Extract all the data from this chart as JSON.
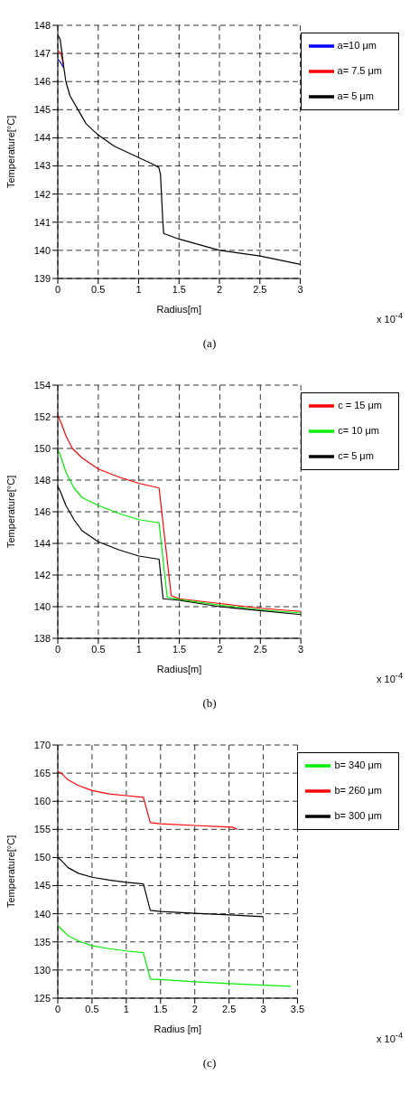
{
  "chart_data": [
    {
      "type": "line",
      "ylabel": "Temperature[°C]",
      "xlabel": "Radius[m]",
      "xlim": [
        0,
        3
      ],
      "xticks": [
        0,
        0.5,
        1,
        1.5,
        2,
        2.5,
        3
      ],
      "ylim": [
        139,
        148
      ],
      "yticks": [
        139,
        140,
        141,
        142,
        143,
        144,
        145,
        146,
        147,
        148
      ],
      "grid": true,
      "legend": "top right",
      "annotations": [
        "x 10$^{-4}$",
        "(a)"
      ],
      "series": [
        {
          "name": "a=10 μm",
          "color": "#0000ff",
          "x": [
            0,
            0.03,
            0.07
          ],
          "values": [
            146.8,
            146.7,
            146.5
          ]
        },
        {
          "name": "a= 7.5 μm",
          "color": "#ff0000",
          "x": [
            0,
            0.04,
            0.07
          ],
          "values": [
            147.1,
            147.0,
            146.6
          ]
        },
        {
          "name": "a= 5 μm",
          "color": "#000000",
          "x": [
            0,
            0.03,
            0.07,
            0.1,
            0.15,
            0.25,
            0.35,
            0.5,
            0.7,
            1.0,
            1.15,
            1.25,
            1.27,
            1.3,
            1.31,
            1.5,
            1.75,
            2.0,
            2.5,
            3.0
          ],
          "values": [
            147.65,
            147.5,
            146.6,
            146.0,
            145.5,
            145.0,
            144.5,
            144.1,
            143.7,
            143.3,
            143.1,
            142.95,
            142.7,
            141.0,
            140.6,
            140.4,
            140.2,
            140.0,
            139.8,
            139.5
          ]
        }
      ]
    },
    {
      "type": "line",
      "ylabel": "Temperature[°C]",
      "xlabel": "Radius[m]",
      "xlim": [
        0,
        3
      ],
      "xticks": [
        0,
        0.5,
        1,
        1.5,
        2,
        2.5,
        3
      ],
      "ylim": [
        138,
        154
      ],
      "yticks": [
        138,
        140,
        142,
        144,
        146,
        148,
        150,
        152,
        154
      ],
      "grid": true,
      "legend": "top right",
      "annotations": [
        "x 10$^{-4}$",
        "(b)"
      ],
      "series": [
        {
          "name": "c = 15 μm",
          "color": "#ff0000",
          "x": [
            0,
            0.05,
            0.1,
            0.18,
            0.3,
            0.5,
            0.75,
            1.0,
            1.25,
            1.4,
            1.5,
            2.0,
            2.5,
            3.0
          ],
          "values": [
            152.1,
            151.5,
            150.8,
            150.0,
            149.4,
            148.7,
            148.2,
            147.8,
            147.5,
            140.7,
            140.5,
            140.2,
            139.9,
            139.7
          ]
        },
        {
          "name": "c= 10 μm",
          "color": "#00ee00",
          "x": [
            0,
            0.03,
            0.1,
            0.2,
            0.3,
            0.5,
            0.75,
            1.0,
            1.25,
            1.35,
            1.5,
            2.0,
            2.5,
            3.0
          ],
          "values": [
            149.9,
            149.6,
            148.5,
            147.5,
            146.9,
            146.4,
            145.9,
            145.5,
            145.3,
            140.6,
            140.45,
            140.1,
            139.8,
            139.6
          ]
        },
        {
          "name": "c= 5 μm",
          "color": "#000000",
          "x": [
            0,
            0.03,
            0.1,
            0.2,
            0.3,
            0.5,
            0.75,
            1.0,
            1.25,
            1.3,
            1.5,
            2.0,
            2.5,
            3.0
          ],
          "values": [
            147.6,
            147.3,
            146.4,
            145.5,
            144.8,
            144.1,
            143.6,
            143.2,
            143.0,
            140.5,
            140.4,
            140.0,
            139.75,
            139.5
          ]
        }
      ]
    },
    {
      "type": "line",
      "ylabel": "Temperature[°C]",
      "xlabel": "Radius [m]",
      "xlim": [
        0,
        3.5
      ],
      "xticks": [
        0,
        0.5,
        1,
        1.5,
        2,
        2.5,
        3,
        3.5
      ],
      "ylim": [
        125,
        170
      ],
      "yticks": [
        125,
        130,
        135,
        140,
        145,
        150,
        155,
        160,
        165,
        170
      ],
      "grid": true,
      "legend": "top right",
      "annotations": [
        "x 10$^{-4}$",
        "(c)"
      ],
      "series": [
        {
          "name": "b= 340 μm",
          "color": "#00ee00",
          "x": [
            0,
            0.05,
            0.15,
            0.3,
            0.5,
            0.75,
            1.0,
            1.25,
            1.35,
            1.5,
            2.0,
            2.5,
            3.0,
            3.4
          ],
          "values": [
            137.9,
            137.3,
            136.1,
            135.2,
            134.3,
            133.8,
            133.4,
            133.1,
            128.4,
            128.3,
            127.9,
            127.6,
            127.3,
            127.1
          ]
        },
        {
          "name": "b= 260 μm",
          "color": "#ff0000",
          "x": [
            0,
            0.05,
            0.15,
            0.3,
            0.5,
            0.75,
            1.0,
            1.25,
            1.35,
            1.5,
            2.0,
            2.55,
            2.62
          ],
          "values": [
            165.3,
            165.0,
            163.8,
            162.8,
            161.9,
            161.3,
            161.0,
            160.7,
            156.2,
            156.0,
            155.7,
            155.4,
            155.0
          ]
        },
        {
          "name": "b= 300 μm",
          "color": "#000000",
          "x": [
            0,
            0.05,
            0.15,
            0.3,
            0.5,
            0.75,
            1.0,
            1.25,
            1.35,
            1.5,
            2.0,
            2.5,
            3.0
          ],
          "values": [
            150.0,
            149.5,
            148.2,
            147.2,
            146.5,
            146.0,
            145.6,
            145.3,
            140.6,
            140.4,
            140.1,
            139.8,
            139.5
          ]
        }
      ]
    }
  ]
}
